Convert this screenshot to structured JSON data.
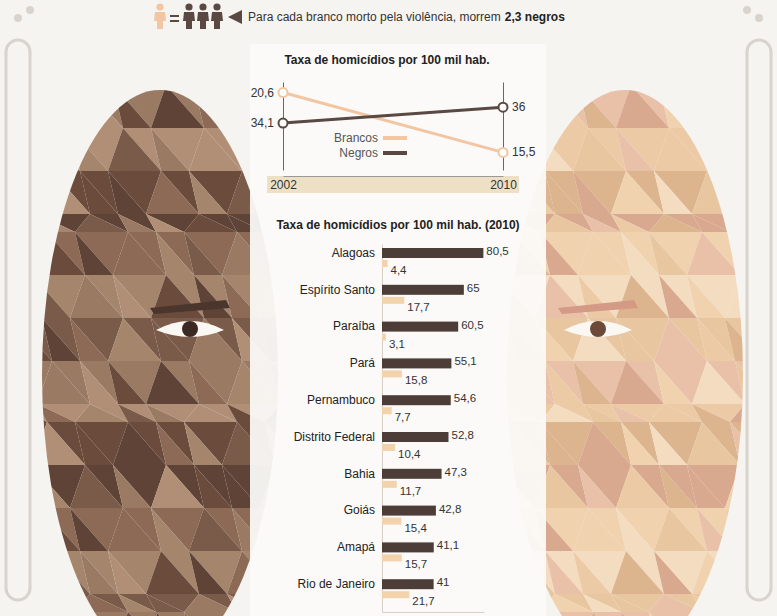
{
  "header": {
    "text": "Para cada branco morto pela violência, morrem",
    "emphasis": "2,3 negros"
  },
  "chart_data": [
    {
      "type": "line",
      "title": "Taxa de homicídios por 100 mil hab.",
      "x": [
        2002,
        2010
      ],
      "xlim": [
        2002,
        2010
      ],
      "xticks": [
        2002,
        2010
      ],
      "ylim": [
        14,
        21.5
      ],
      "yticks": [],
      "y2lim": [
        28.5,
        39
      ],
      "y2ticks": [],
      "tick_labels": "x",
      "legend": "bottom",
      "data_labels": true,
      "series": [
        {
          "name": "Brancos",
          "color": "#f2c6a2",
          "marker": "circle",
          "values": [
            20.6,
            15.5
          ],
          "value_labels": [
            "20,6",
            "15,5"
          ]
        },
        {
          "name": "Negros",
          "color": "#5a4842",
          "marker": "circle",
          "axis": "y2",
          "values": [
            34.1,
            36
          ],
          "value_labels": [
            "34,1",
            "36"
          ]
        }
      ]
    },
    {
      "type": "bar",
      "orientation": "horizontal",
      "title": "Taxa de homicídios por 100 mil hab. (2010)",
      "categories": [
        "Alagoas",
        "Espírito Santo",
        "Paraíba",
        "Pará",
        "Pernambuco",
        "Distrito Federal",
        "Bahia",
        "Goiás",
        "Amapá",
        "Rio de Janeiro"
      ],
      "xlim": [
        0,
        81
      ],
      "xticks": [],
      "tick_labels": "y",
      "data_labels": true,
      "series": [
        {
          "color": "#4d3d38",
          "values": [
            80.5,
            65,
            60.5,
            55.1,
            54.6,
            52.8,
            47.3,
            42.8,
            41.1,
            41
          ],
          "value_labels": [
            "80,5",
            "65",
            "60,5",
            "55,1",
            "54,6",
            "52,8",
            "47,3",
            "42,8",
            "41,1",
            "41"
          ]
        },
        {
          "color": "#f2d3ab",
          "values": [
            4.4,
            17.7,
            3.1,
            15.8,
            7.7,
            10.4,
            11.7,
            15.4,
            15.7,
            21.7
          ],
          "value_labels": [
            "4,4",
            "17,7",
            "3,1",
            "15,8",
            "7,7",
            "10,4",
            "11,7",
            "15,4",
            "15,7",
            "21,7"
          ]
        }
      ]
    }
  ]
}
